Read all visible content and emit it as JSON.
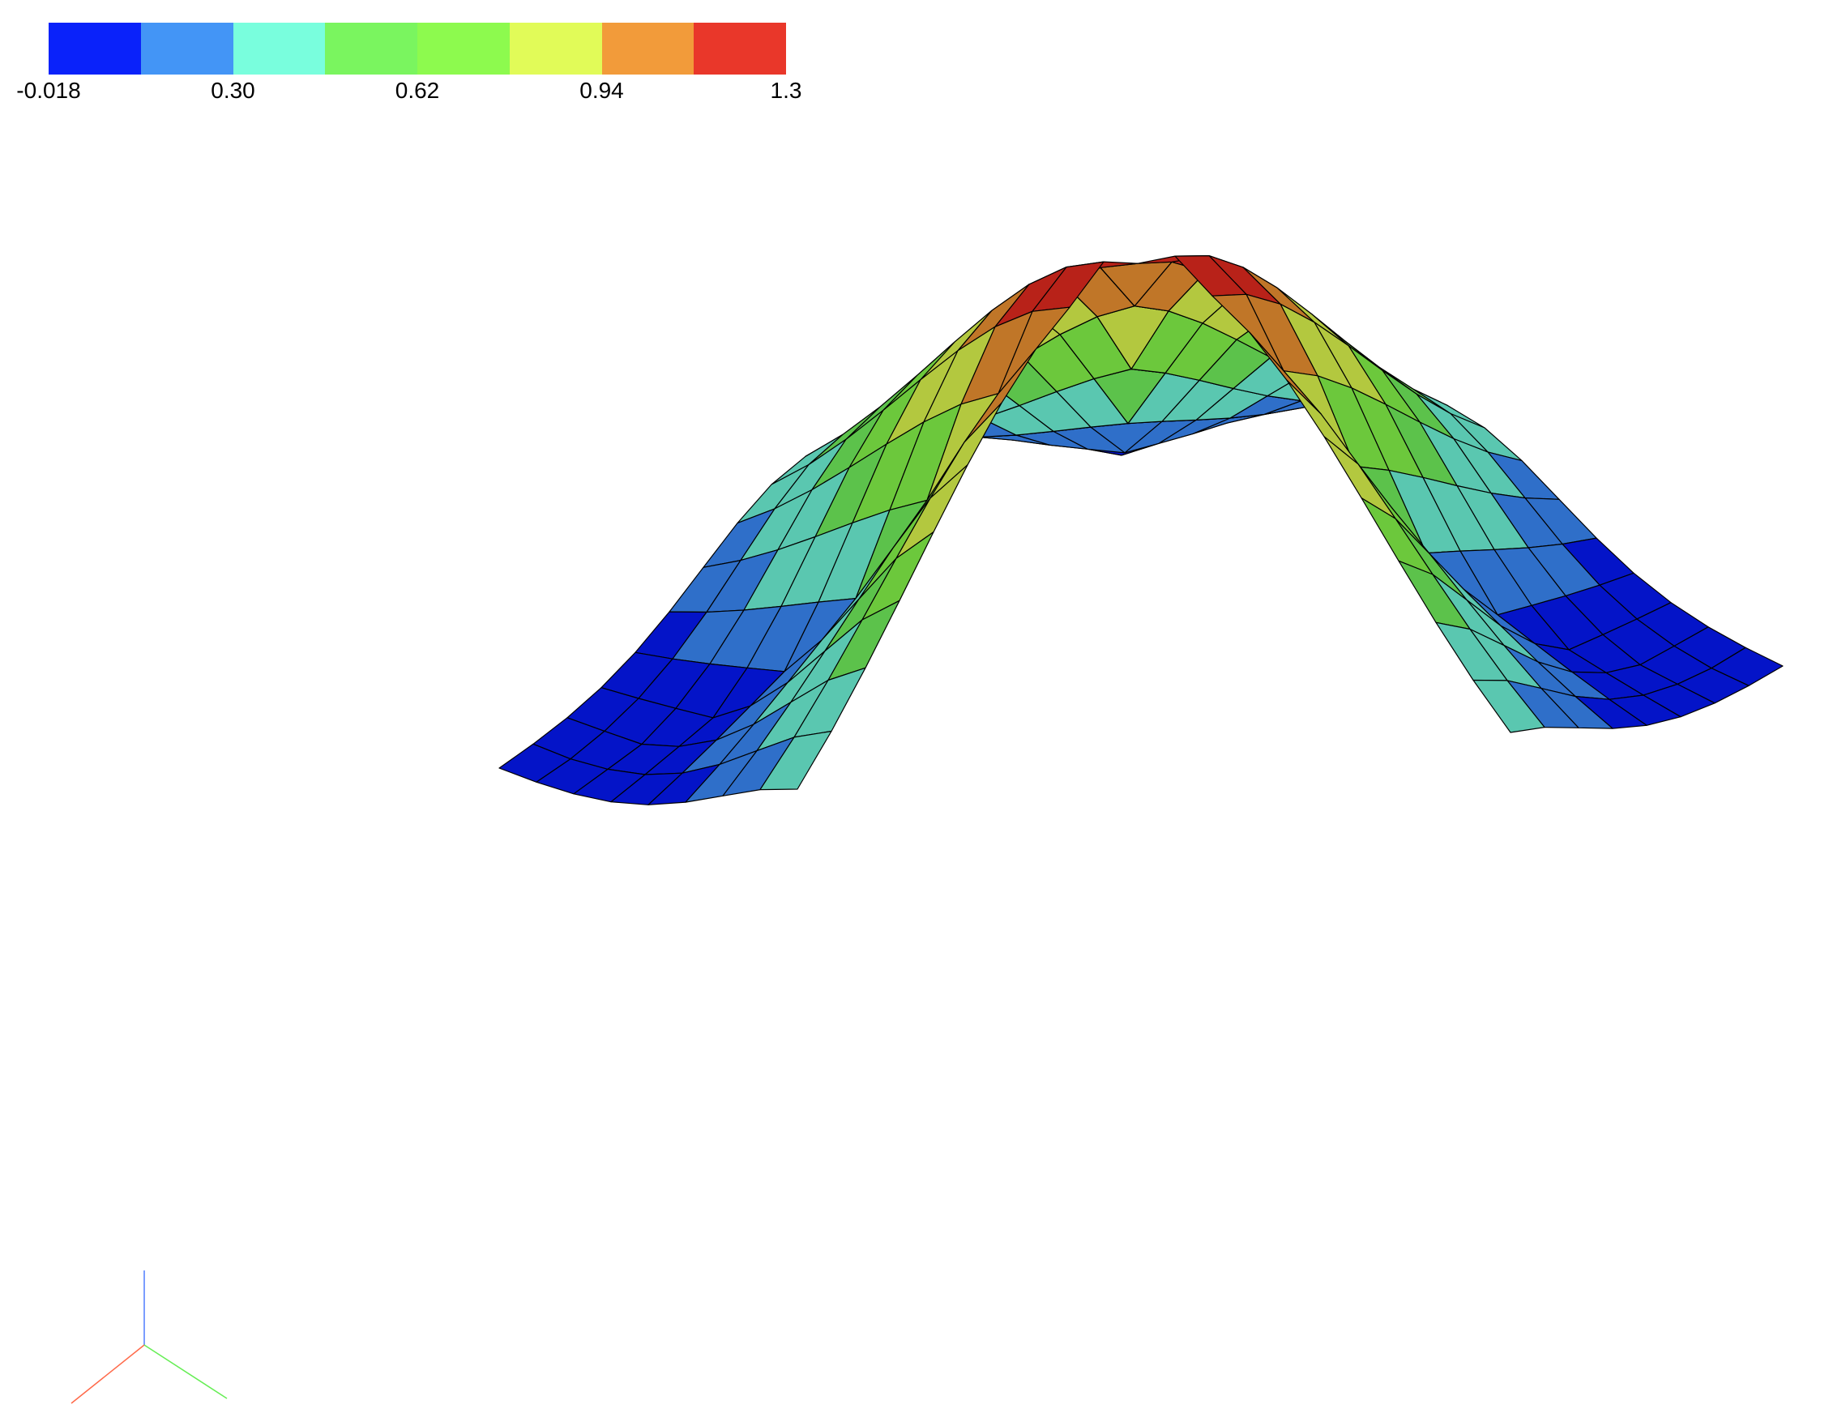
{
  "scalar_bar": {
    "colors": [
      "#0a22fa",
      "#4395f6",
      "#79fedd",
      "#7af55f",
      "#8dfa4e",
      "#e1fb58",
      "#f29b3a",
      "#e9372a"
    ],
    "labels": [
      "-0.018",
      "0.30",
      "0.62",
      "0.94",
      "1.3"
    ],
    "min": -0.018,
    "max": 1.3
  },
  "chart_data": {
    "type": "surface",
    "title": "",
    "xlabel": "",
    "ylabel": "",
    "zlabel": "",
    "color_range": [
      -0.018,
      1.3
    ],
    "levels": 8,
    "mesh": "L-shaped domain, structured quad grid with black edges",
    "peak_value": 1.3,
    "edge_value": -0.018
  },
  "orientation_triad": {
    "x_color": "#ff6a4a",
    "y_color": "#66ee55",
    "z_color": "#4f7cff"
  }
}
